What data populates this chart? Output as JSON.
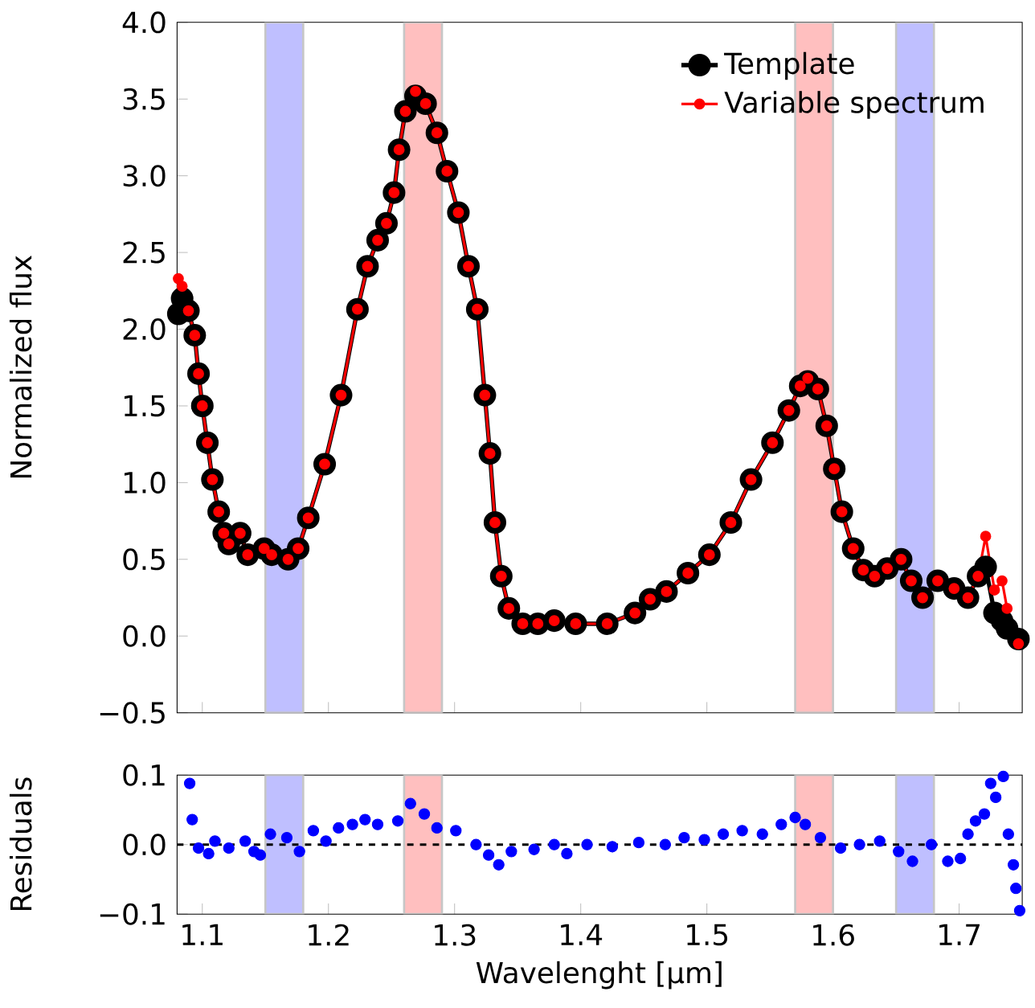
{
  "chart_data": [
    {
      "type": "line",
      "ylabel": "Normalized flux",
      "xlim": [
        1.08,
        1.75
      ],
      "ylim": [
        -0.5,
        4.0
      ],
      "xticks": [
        1.1,
        1.2,
        1.3,
        1.4,
        1.5,
        1.6,
        1.7
      ],
      "yticks": [
        {
          "value": -0.5,
          "label": "−0.5"
        },
        {
          "value": 0,
          "label": "0.0"
        },
        0.5,
        {
          "value": 1,
          "label": "1.0"
        },
        1.5,
        {
          "value": 2,
          "label": "2.0"
        },
        2.5,
        {
          "value": 3,
          "label": "3.0"
        },
        3.5,
        {
          "value": 4,
          "label": "4.0"
        }
      ],
      "tick_labels": "y",
      "legend": "top right",
      "marker": "circle",
      "x": [
        1.081,
        1.084,
        1.089,
        1.094,
        1.097,
        1.1,
        1.104,
        1.108,
        1.113,
        1.117,
        1.121,
        1.13,
        1.136,
        1.149,
        1.155,
        1.168,
        1.176,
        1.184,
        1.197,
        1.21,
        1.223,
        1.231,
        1.239,
        1.246,
        1.252,
        1.256,
        1.261,
        1.269,
        1.277,
        1.286,
        1.294,
        1.303,
        1.311,
        1.318,
        1.324,
        1.328,
        1.332,
        1.337,
        1.343,
        1.354,
        1.366,
        1.379,
        1.396,
        1.421,
        1.443,
        1.455,
        1.468,
        1.485,
        1.502,
        1.519,
        1.535,
        1.552,
        1.565,
        1.574,
        1.58,
        1.588,
        1.595,
        1.601,
        1.607,
        1.616,
        1.624,
        1.633,
        1.643,
        1.654,
        1.662,
        1.671,
        1.683,
        1.696,
        1.707,
        1.715,
        1.721,
        1.728,
        1.734,
        1.738,
        1.747
      ],
      "series": [
        {
          "name": "Template",
          "color": "#000000",
          "values": [
            2.1,
            2.2,
            2.12,
            1.96,
            1.71,
            1.5,
            1.26,
            1.02,
            0.81,
            0.67,
            0.6,
            0.67,
            0.53,
            0.57,
            0.53,
            0.5,
            0.57,
            0.77,
            1.12,
            1.57,
            2.13,
            2.41,
            2.58,
            2.69,
            2.89,
            3.17,
            3.42,
            3.52,
            3.47,
            3.28,
            3.03,
            2.76,
            2.41,
            2.13,
            1.57,
            1.19,
            0.74,
            0.39,
            0.18,
            0.08,
            0.08,
            0.1,
            0.08,
            0.08,
            0.15,
            0.24,
            0.29,
            0.41,
            0.53,
            0.74,
            1.02,
            1.26,
            1.47,
            1.63,
            1.66,
            1.61,
            1.37,
            1.09,
            0.81,
            0.57,
            0.43,
            0.39,
            0.44,
            0.5,
            0.36,
            0.25,
            0.36,
            0.31,
            0.25,
            0.39,
            0.45,
            0.15,
            0.1,
            0.05,
            -0.02
          ]
        },
        {
          "name": "Variable spectrum",
          "color": "#ff0000",
          "values": [
            2.33,
            2.28,
            2.12,
            1.96,
            1.71,
            1.5,
            1.26,
            1.02,
            0.81,
            0.67,
            0.6,
            0.67,
            0.53,
            0.57,
            0.53,
            0.5,
            0.57,
            0.77,
            1.12,
            1.57,
            2.13,
            2.41,
            2.58,
            2.69,
            2.89,
            3.17,
            3.42,
            3.55,
            3.47,
            3.28,
            3.03,
            2.76,
            2.41,
            2.13,
            1.57,
            1.19,
            0.74,
            0.39,
            0.18,
            0.08,
            0.08,
            0.1,
            0.08,
            0.08,
            0.15,
            0.24,
            0.29,
            0.41,
            0.53,
            0.74,
            1.02,
            1.26,
            1.47,
            1.63,
            1.68,
            1.61,
            1.37,
            1.09,
            0.81,
            0.57,
            0.43,
            0.39,
            0.44,
            0.5,
            0.36,
            0.25,
            0.36,
            0.31,
            0.25,
            0.39,
            0.65,
            0.3,
            0.36,
            0.18,
            -0.05
          ]
        }
      ],
      "bands": [
        {
          "axis": "x",
          "from": 1.15,
          "to": 1.18,
          "color": "#bfbfff"
        },
        {
          "axis": "x",
          "from": 1.26,
          "to": 1.29,
          "color": "#ffbfbf"
        },
        {
          "axis": "x",
          "from": 1.57,
          "to": 1.6,
          "color": "#ffbfbf"
        },
        {
          "axis": "x",
          "from": 1.65,
          "to": 1.68,
          "color": "#bfbfff"
        }
      ]
    },
    {
      "type": "scatter",
      "xlabel": "Wavelenght [μm]",
      "ylabel": "Residuals",
      "xlim": [
        1.08,
        1.75
      ],
      "ylim": [
        -0.1,
        0.1
      ],
      "xticks": [
        1.1,
        1.2,
        1.3,
        1.4,
        1.5,
        1.6,
        1.7
      ],
      "yticks": [
        {
          "value": -0.1,
          "label": "−0.1"
        },
        {
          "value": 0,
          "label": "0.0"
        },
        0.1
      ],
      "marker": "circle",
      "x": [
        1.09,
        1.092,
        1.097,
        1.105,
        1.11,
        1.121,
        1.134,
        1.141,
        1.146,
        1.154,
        1.167,
        1.177,
        1.188,
        1.198,
        1.208,
        1.219,
        1.229,
        1.239,
        1.255,
        1.265,
        1.276,
        1.286,
        1.301,
        1.317,
        1.327,
        1.335,
        1.345,
        1.363,
        1.379,
        1.389,
        1.405,
        1.425,
        1.446,
        1.467,
        1.482,
        1.498,
        1.513,
        1.528,
        1.544,
        1.559,
        1.57,
        1.578,
        1.59,
        1.606,
        1.621,
        1.637,
        1.652,
        1.663,
        1.678,
        1.691,
        1.701,
        1.707,
        1.713,
        1.72,
        1.725,
        1.729,
        1.735,
        1.739,
        1.743,
        1.745,
        1.748
      ],
      "series": [
        {
          "color": "#0000ff",
          "values": [
            0.088,
            0.036,
            -0.005,
            -0.013,
            0.005,
            -0.005,
            0.005,
            -0.01,
            -0.015,
            0.015,
            0.01,
            -0.01,
            0.02,
            0.005,
            0.024,
            0.029,
            0.036,
            0.029,
            0.034,
            0.059,
            0.044,
            0.024,
            0.02,
            0.0,
            -0.015,
            -0.029,
            -0.01,
            -0.007,
            0.0,
            -0.013,
            0.0,
            -0.003,
            0.003,
            0.0,
            0.01,
            0.007,
            0.015,
            0.02,
            0.015,
            0.029,
            0.039,
            0.029,
            0.01,
            -0.005,
            0.0,
            0.005,
            -0.01,
            -0.024,
            0.0,
            -0.024,
            -0.02,
            0.015,
            0.034,
            0.044,
            0.088,
            0.068,
            0.098,
            0.015,
            -0.029,
            -0.063,
            -0.095
          ]
        }
      ],
      "bands": [
        {
          "axis": "x",
          "from": 1.15,
          "to": 1.18,
          "color": "#bfbfff"
        },
        {
          "axis": "x",
          "from": 1.26,
          "to": 1.29,
          "color": "#ffbfbf"
        },
        {
          "axis": "x",
          "from": 1.57,
          "to": 1.6,
          "color": "#ffbfbf"
        },
        {
          "axis": "x",
          "from": 1.65,
          "to": 1.68,
          "color": "#bfbfff"
        }
      ],
      "ref_lines": [
        {
          "axis": "y",
          "value": 0,
          "color": "#000000",
          "line_style": "dashed"
        }
      ]
    }
  ]
}
